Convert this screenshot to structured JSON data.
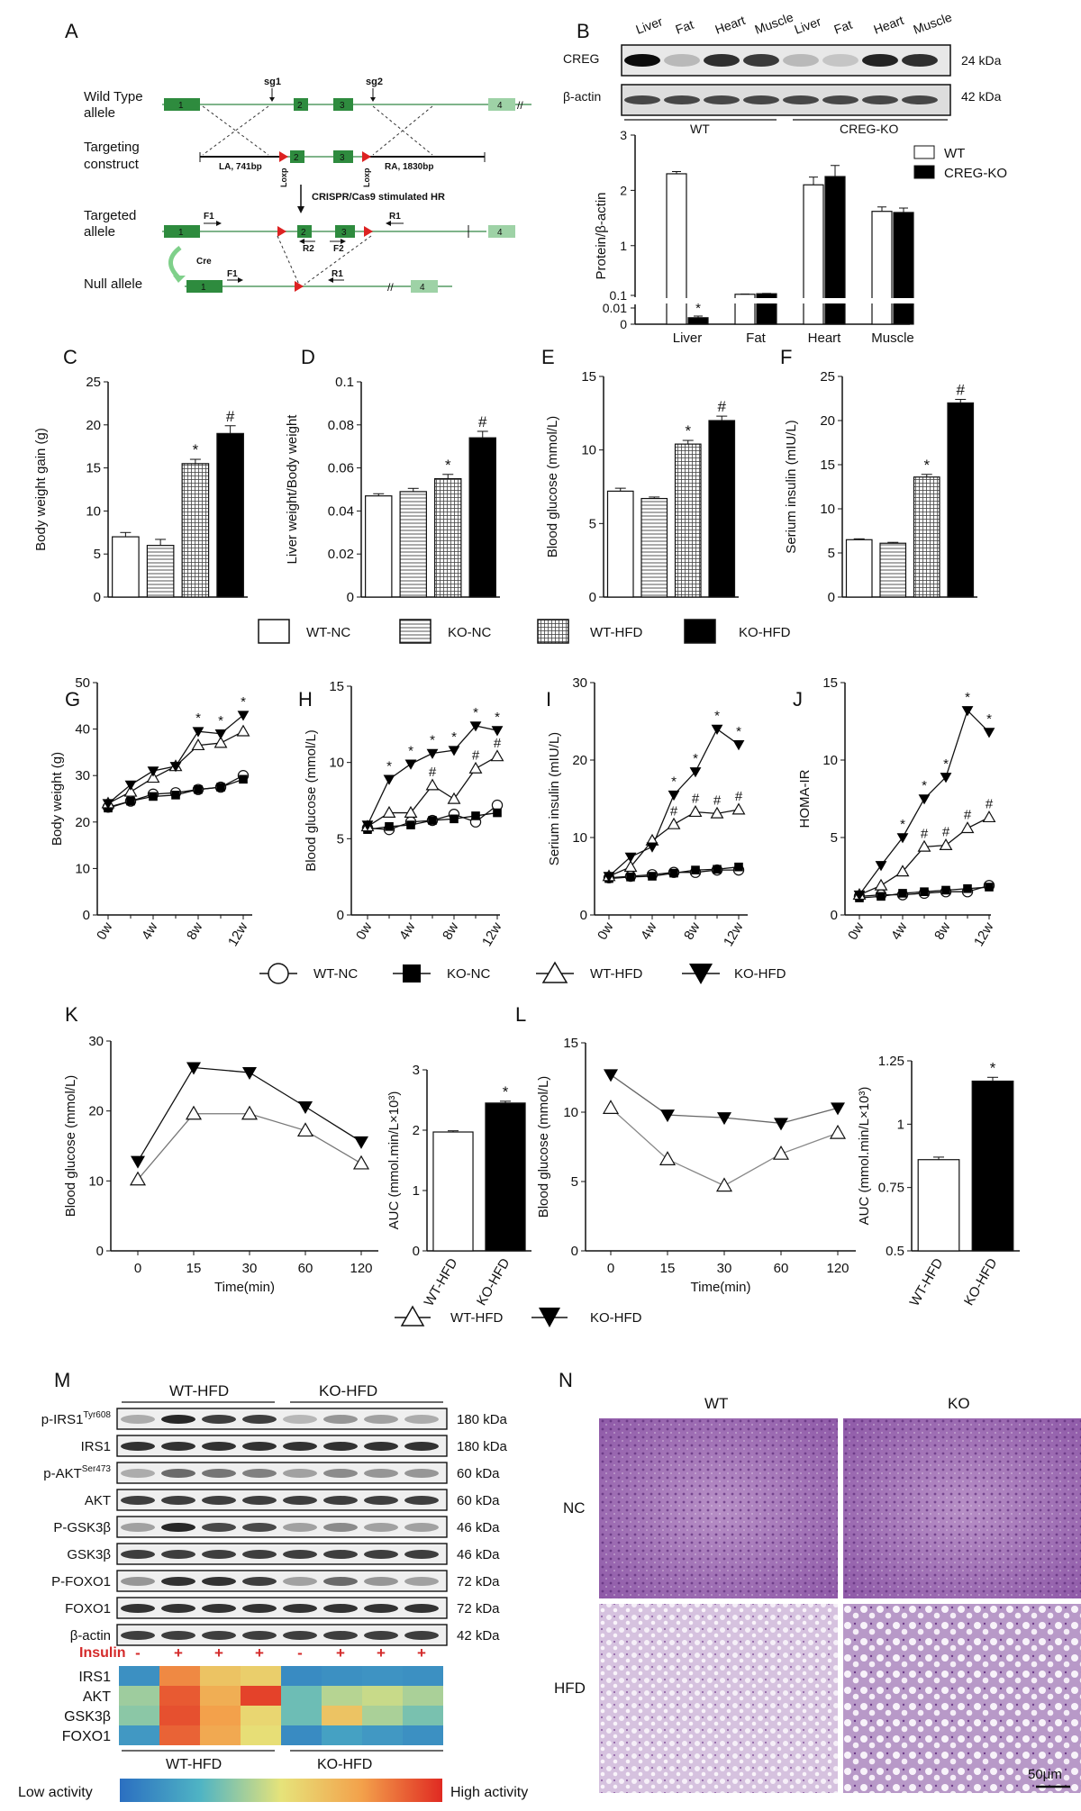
{
  "panel_letters": [
    "A",
    "B",
    "C",
    "D",
    "E",
    "F",
    "G",
    "H",
    "I",
    "J",
    "K",
    "L",
    "M",
    "N"
  ],
  "panelA": {
    "rows": [
      "Wild Type allele",
      "Targeting construct",
      "Targeted allele",
      "Null allele"
    ],
    "exons": [
      "1",
      "2",
      "3",
      "4"
    ],
    "sg1": "sg1",
    "sg2": "sg2",
    "la": "LA, 741bp",
    "ra": "RA, 1830bp",
    "loxp": "Loxp",
    "crispr": "CRISPR/Cas9 stimulated  HR",
    "cre": "Cre",
    "primers": [
      "F1",
      "R1",
      "R2",
      "F2"
    ]
  },
  "panelB": {
    "lanes": [
      "Liver",
      "Fat",
      "Heart",
      "Muscle",
      "Liver",
      "Fat",
      "Heart",
      "Muscle"
    ],
    "proteins": [
      "CREG",
      "β-actin"
    ],
    "sizes": [
      "24 kDa",
      "42 kDa"
    ],
    "groups": [
      "WT",
      "CREG-KO"
    ],
    "ylabel": "Protein/β-actin",
    "yticks": [
      "3",
      "2",
      "1",
      "0.1",
      "0.01",
      "0"
    ],
    "legend": [
      "WT",
      "CREG-KO"
    ],
    "star": "*"
  },
  "group_legend": [
    "WT-NC",
    "KO-NC",
    "WT-HFD",
    "KO-HFD"
  ],
  "line_legend": [
    "WT-NC",
    "KO-NC",
    "WT-HFD",
    "KO-HFD"
  ],
  "kl_legend": [
    "WT-HFD",
    "KO-HFD"
  ],
  "panelM": {
    "groups": [
      "WT-HFD",
      "KO-HFD"
    ],
    "rows": [
      {
        "name": "p-IRS1",
        "sup": "Tyr608",
        "kda": "180 kDa"
      },
      {
        "name": "IRS1",
        "sup": "",
        "kda": "180 kDa"
      },
      {
        "name": "p-AKT",
        "sup": "Ser473",
        "kda": "60 kDa"
      },
      {
        "name": "AKT",
        "sup": "",
        "kda": "60 kDa"
      },
      {
        "name": "P-GSK3β",
        "sup": "",
        "kda": "46 kDa"
      },
      {
        "name": "GSK3β",
        "sup": "",
        "kda": "46 kDa"
      },
      {
        "name": "P-FOXO1",
        "sup": "",
        "kda": "72 kDa"
      },
      {
        "name": "FOXO1",
        "sup": "",
        "kda": "72 kDa"
      },
      {
        "name": "β-actin",
        "sup": "",
        "kda": "42 kDa"
      }
    ],
    "insulin_label": "Insulin",
    "insulin_signs": [
      "-",
      "+",
      "+",
      "+",
      "-",
      "+",
      "+",
      "+"
    ],
    "heatmap_rows": [
      "IRS1",
      "AKT",
      "GSK3β",
      "FOXO1"
    ],
    "heatmap_values": [
      [
        0.12,
        0.8,
        0.62,
        0.58,
        0.1,
        0.12,
        0.13,
        0.12
      ],
      [
        0.38,
        0.9,
        0.7,
        0.95,
        0.3,
        0.42,
        0.45,
        0.4
      ],
      [
        0.35,
        0.92,
        0.75,
        0.55,
        0.3,
        0.62,
        0.4,
        0.32
      ],
      [
        0.15,
        0.88,
        0.72,
        0.52,
        0.1,
        0.18,
        0.15,
        0.12
      ]
    ],
    "scale_low": "Low activity",
    "scale_high": "High activity"
  },
  "panelN": {
    "cols": [
      "WT",
      "KO"
    ],
    "rows": [
      "NC",
      "HFD"
    ],
    "scalebar": "50μm"
  },
  "chart_data": [
    {
      "panel": "B",
      "type": "bar",
      "categories": [
        "Liver",
        "Fat",
        "Heart",
        "Muscle"
      ],
      "series": [
        {
          "name": "WT",
          "values": [
            2.3,
            0.12,
            2.1,
            1.62
          ],
          "errors": [
            0.04,
            0.005,
            0.14,
            0.08
          ]
        },
        {
          "name": "CREG-KO",
          "values": [
            0.004,
            0.13,
            2.25,
            1.6
          ],
          "errors": [
            0.001,
            0.006,
            0.2,
            0.08
          ]
        }
      ],
      "ylabel": "Protein/β-actin",
      "significance": [
        "*",
        "",
        "",
        ""
      ]
    },
    {
      "panel": "C",
      "type": "bar",
      "categories": [
        "WT-NC",
        "KO-NC",
        "WT-HFD",
        "KO-HFD"
      ],
      "values": [
        7.0,
        6.0,
        15.5,
        19.0
      ],
      "errors": [
        0.5,
        0.7,
        0.5,
        0.9
      ],
      "significance": [
        "",
        "",
        "*",
        "#"
      ],
      "ylabel": "Body weight gain (g)",
      "ylim": [
        0,
        25
      ],
      "yticks": [
        0,
        5,
        10,
        15,
        20,
        25
      ]
    },
    {
      "panel": "D",
      "type": "bar",
      "categories": [
        "WT-NC",
        "KO-NC",
        "WT-HFD",
        "KO-HFD"
      ],
      "values": [
        0.047,
        0.049,
        0.055,
        0.074
      ],
      "errors": [
        0.001,
        0.0015,
        0.002,
        0.003
      ],
      "significance": [
        "",
        "",
        "*",
        "#"
      ],
      "ylabel": "Liver weight/Body weight",
      "ylim": [
        0,
        0.1
      ],
      "yticks": [
        0,
        0.02,
        0.04,
        0.06,
        0.08,
        0.1
      ]
    },
    {
      "panel": "E",
      "type": "bar",
      "categories": [
        "WT-NC",
        "KO-NC",
        "WT-HFD",
        "KO-HFD"
      ],
      "values": [
        7.2,
        6.7,
        10.4,
        12.0
      ],
      "errors": [
        0.2,
        0.1,
        0.25,
        0.3
      ],
      "significance": [
        "",
        "",
        "*",
        "#"
      ],
      "ylabel": "Blood glucose (mmol/L)",
      "ylim": [
        0,
        15
      ],
      "yticks": [
        0,
        5,
        10,
        15
      ]
    },
    {
      "panel": "F",
      "type": "bar",
      "categories": [
        "WT-NC",
        "KO-NC",
        "WT-HFD",
        "KO-HFD"
      ],
      "values": [
        6.5,
        6.1,
        13.6,
        22.0
      ],
      "errors": [
        0.1,
        0.1,
        0.3,
        0.4
      ],
      "significance": [
        "",
        "",
        "*",
        "#"
      ],
      "ylabel": "Serium insulin (mIU/L)",
      "ylim": [
        0,
        25
      ],
      "yticks": [
        0,
        5,
        10,
        15,
        20,
        25
      ]
    },
    {
      "panel": "G",
      "type": "line",
      "x_labels": [
        "0w",
        "4w",
        "8w",
        "12w"
      ],
      "x": [
        0,
        2,
        4,
        6,
        8,
        10,
        12
      ],
      "series": [
        {
          "name": "WT-NC",
          "values": [
            23.2,
            24.5,
            26.0,
            26.3,
            27.0,
            27.5,
            30.0
          ]
        },
        {
          "name": "KO-NC",
          "values": [
            23.0,
            24.5,
            25.5,
            25.8,
            27.0,
            27.5,
            29.2
          ]
        },
        {
          "name": "WT-HFD",
          "values": [
            24.0,
            26.5,
            29.5,
            32.0,
            36.5,
            37.0,
            39.5
          ]
        },
        {
          "name": "KO-HFD",
          "values": [
            24.0,
            28.0,
            31.0,
            32.0,
            39.5,
            39.0,
            43.0
          ]
        }
      ],
      "significance": {
        "8": "*",
        "10": "*",
        "12": "*"
      },
      "ylabel": "Body weight (g)",
      "ylim": [
        0,
        50
      ],
      "yticks": [
        0,
        10,
        20,
        30,
        40,
        50
      ]
    },
    {
      "panel": "H",
      "type": "line",
      "x_labels": [
        "0w",
        "4w",
        "8w",
        "12w"
      ],
      "x": [
        0,
        2,
        4,
        6,
        8,
        10,
        12
      ],
      "series": [
        {
          "name": "WT-NC",
          "values": [
            5.7,
            5.6,
            6.1,
            6.2,
            6.6,
            6.1,
            7.2
          ]
        },
        {
          "name": "KO-NC",
          "values": [
            5.6,
            5.8,
            5.9,
            6.2,
            6.3,
            6.5,
            6.7
          ]
        },
        {
          "name": "WT-HFD",
          "values": [
            5.8,
            6.7,
            6.7,
            8.5,
            7.6,
            9.6,
            10.4
          ]
        },
        {
          "name": "KO-HFD",
          "values": [
            5.9,
            8.9,
            9.9,
            10.6,
            10.8,
            12.4,
            12.1
          ]
        }
      ],
      "significance": {
        "2": "*",
        "4": "*",
        "6": "*#",
        "8": "*",
        "10": "*#",
        "12": "*#"
      },
      "ylabel": "Blood glucose (mmol/L)",
      "ylim": [
        0,
        15
      ],
      "yticks": [
        0,
        5,
        10,
        15
      ]
    },
    {
      "panel": "I",
      "type": "line",
      "x_labels": [
        "0w",
        "4w",
        "8w",
        "12w"
      ],
      "x": [
        0,
        2,
        4,
        6,
        8,
        10,
        12
      ],
      "series": [
        {
          "name": "WT-NC",
          "values": [
            4.8,
            5.0,
            5.2,
            5.5,
            5.5,
            5.8,
            5.8
          ]
        },
        {
          "name": "KO-NC",
          "values": [
            4.7,
            4.9,
            5.0,
            5.4,
            5.8,
            5.9,
            6.2
          ]
        },
        {
          "name": "WT-HFD",
          "values": [
            5.0,
            6.2,
            9.6,
            11.7,
            13.3,
            13.1,
            13.6
          ]
        },
        {
          "name": "KO-HFD",
          "values": [
            5.0,
            7.5,
            8.8,
            15.5,
            18.5,
            24.0,
            22.0
          ]
        }
      ],
      "significance": {
        "6": "*#",
        "8": "*#",
        "10": "*#",
        "12": "*#"
      },
      "ylabel": "Serium insulin (mIU/L)",
      "ylim": [
        0,
        30
      ],
      "yticks": [
        0,
        10,
        20,
        30
      ]
    },
    {
      "panel": "J",
      "type": "line",
      "x_labels": [
        "0w",
        "4w",
        "8w",
        "12w"
      ],
      "x": [
        0,
        2,
        4,
        6,
        8,
        10,
        12
      ],
      "series": [
        {
          "name": "WT-NC",
          "values": [
            1.2,
            1.3,
            1.3,
            1.4,
            1.5,
            1.5,
            1.9
          ]
        },
        {
          "name": "KO-NC",
          "values": [
            1.1,
            1.2,
            1.4,
            1.5,
            1.6,
            1.7,
            1.8
          ]
        },
        {
          "name": "WT-HFD",
          "values": [
            1.3,
            1.9,
            2.8,
            4.4,
            4.5,
            5.6,
            6.3
          ]
        },
        {
          "name": "KO-HFD",
          "values": [
            1.3,
            3.2,
            5.0,
            7.5,
            8.9,
            13.2,
            11.8
          ]
        }
      ],
      "significance": {
        "4": "*",
        "6": "*#",
        "8": "*#",
        "10": "*#",
        "12": "*#"
      },
      "ylabel": "HOMA-IR",
      "ylim": [
        0,
        15
      ],
      "yticks": [
        0,
        5,
        10,
        15
      ]
    },
    {
      "panel": "K-line",
      "type": "line",
      "x_labels": [
        "0",
        "15",
        "30",
        "60",
        "120"
      ],
      "series": [
        {
          "name": "WT-HFD",
          "values": [
            10.2,
            19.6,
            19.6,
            17.2,
            12.5
          ]
        },
        {
          "name": "KO-HFD",
          "values": [
            12.8,
            26.2,
            25.5,
            20.6,
            15.6
          ]
        }
      ],
      "xlabel": "Time(min)",
      "ylabel": "Blood glucose (mmol/L)",
      "ylim": [
        0,
        30
      ],
      "yticks": [
        0,
        10,
        20,
        30
      ]
    },
    {
      "panel": "K-bar",
      "type": "bar",
      "categories": [
        "WT-HFD",
        "KO-HFD"
      ],
      "values": [
        1.97,
        2.45
      ],
      "errors": [
        0.02,
        0.03
      ],
      "significance": [
        "",
        "*"
      ],
      "ylabel": "AUC (mmol.min/L×10³)",
      "ylim": [
        0,
        3
      ],
      "yticks": [
        0,
        1,
        2,
        3
      ]
    },
    {
      "panel": "L-line",
      "type": "line",
      "x_labels": [
        "0",
        "15",
        "30",
        "60",
        "120"
      ],
      "series": [
        {
          "name": "WT-HFD",
          "values": [
            10.3,
            6.6,
            4.7,
            7.0,
            8.5
          ]
        },
        {
          "name": "KO-HFD",
          "values": [
            12.7,
            9.8,
            9.6,
            9.2,
            10.3
          ]
        }
      ],
      "xlabel": "Time(min)",
      "ylabel": "Blood glucose (mmol/L)",
      "ylim": [
        0,
        15
      ],
      "yticks": [
        0,
        5,
        10,
        15
      ]
    },
    {
      "panel": "L-bar",
      "type": "bar",
      "categories": [
        "WT-HFD",
        "KO-HFD"
      ],
      "values": [
        0.86,
        1.17
      ],
      "errors": [
        0.01,
        0.015
      ],
      "significance": [
        "",
        "*"
      ],
      "ylabel": "AUC (mmol.min/L×10³)",
      "ylim": [
        0.5,
        1.25
      ],
      "yticks": [
        0.5,
        0.75,
        1.0,
        1.25
      ]
    }
  ]
}
